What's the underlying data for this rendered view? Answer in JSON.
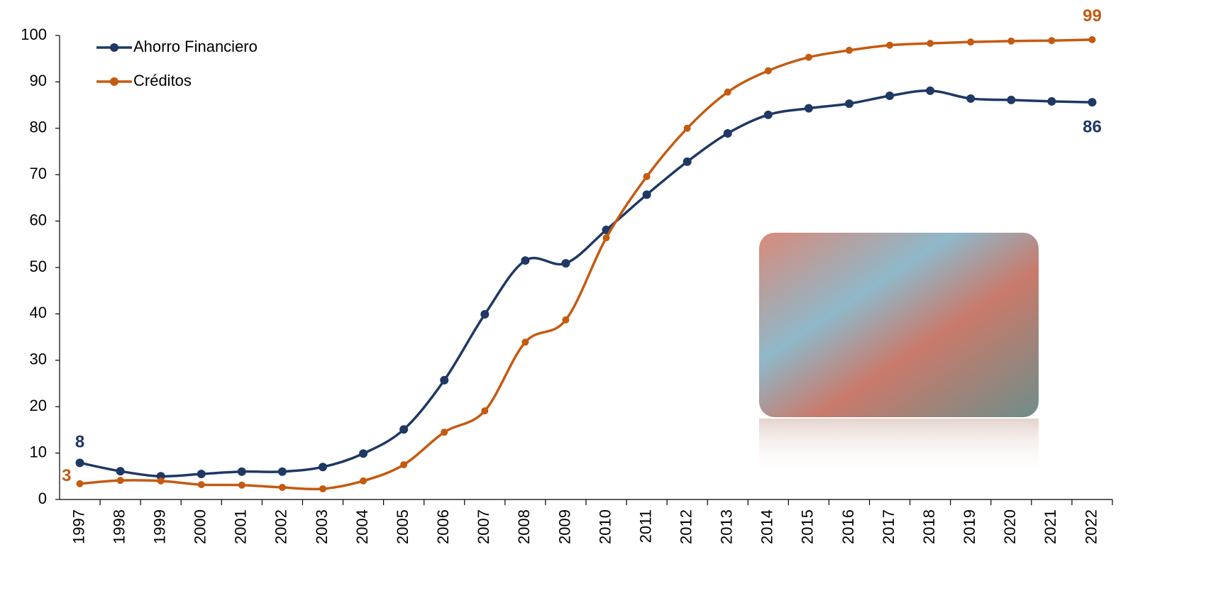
{
  "chart_data": {
    "type": "line",
    "categories": [
      "1997",
      "1998",
      "1999",
      "2000",
      "2001",
      "2002",
      "2003",
      "2004",
      "2005",
      "2006",
      "2007",
      "2008",
      "2009",
      "2010",
      "2011",
      "2012",
      "2013",
      "2014",
      "2015",
      "2016",
      "2017",
      "2018",
      "2019",
      "2020",
      "2021",
      "2022"
    ],
    "series": [
      {
        "name": "Ahorro Financiero",
        "color": "#1f3864",
        "values": [
          7.9,
          6.1,
          5.0,
          5.5,
          6.0,
          6.0,
          7.0,
          9.9,
          15.1,
          25.7,
          39.9,
          51.5,
          50.9,
          58.1,
          65.7,
          72.8,
          78.9,
          82.9,
          84.3,
          85.3,
          87.0,
          88.1,
          86.4,
          86.1,
          85.8,
          85.6
        ],
        "value_labels": [
          "8",
          null,
          null,
          null,
          null,
          null,
          null,
          null,
          null,
          null,
          null,
          null,
          null,
          null,
          null,
          null,
          null,
          null,
          null,
          null,
          null,
          null,
          null,
          null,
          null,
          "86"
        ]
      },
      {
        "name": "Créditos",
        "color": "#c55a11",
        "values": [
          3.4,
          4.1,
          4.0,
          3.2,
          3.1,
          2.6,
          2.3,
          4.0,
          7.5,
          14.5,
          19.1,
          33.9,
          38.7,
          56.4,
          69.6,
          80.0,
          87.8,
          92.4,
          95.3,
          96.8,
          97.9,
          98.3,
          98.6,
          98.8,
          98.9,
          99.1
        ],
        "value_labels": [
          "3",
          null,
          null,
          null,
          null,
          null,
          null,
          null,
          null,
          null,
          null,
          null,
          null,
          null,
          null,
          null,
          null,
          null,
          null,
          null,
          null,
          null,
          null,
          null,
          null,
          "99"
        ]
      }
    ],
    "ylim": [
      0,
      100
    ],
    "yticks": [
      0,
      10,
      20,
      30,
      40,
      50,
      60,
      70,
      80,
      90,
      100
    ],
    "legend": "upper-left",
    "smooth": true
  }
}
